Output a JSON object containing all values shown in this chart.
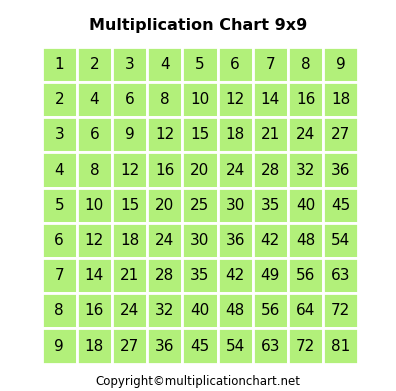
{
  "title": "Multiplication Chart 9x9",
  "copyright": "Copyright©multiplicationchart.net",
  "n": 9,
  "cell_bg_color": "#b2f07a",
  "grid_line_color": "#ffffff",
  "text_color": "#000000",
  "title_fontsize": 11.5,
  "cell_fontsize": 11,
  "copyright_fontsize": 8.5,
  "bg_color": "#ffffff",
  "title_fontweight": "bold"
}
